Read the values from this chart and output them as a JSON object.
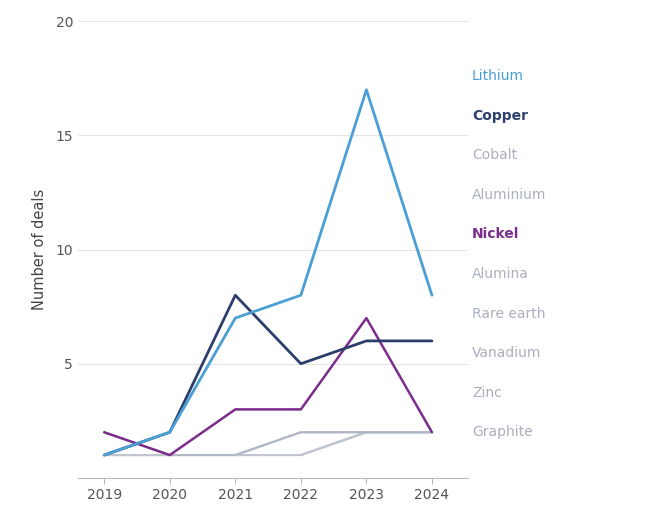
{
  "years": [
    2019,
    2020,
    2021,
    2022,
    2023,
    2024
  ],
  "series": {
    "Lithium": [
      1,
      2,
      7,
      8,
      17,
      8
    ],
    "Copper": [
      1,
      2,
      8,
      5,
      6,
      6
    ],
    "Cobalt": [
      2,
      1,
      1,
      2,
      2,
      2
    ],
    "Aluminium": [
      1,
      1,
      1,
      1,
      2,
      2
    ],
    "Nickel": [
      2,
      1,
      3,
      3,
      7,
      2
    ],
    "Alumina": [
      1,
      1,
      1,
      2,
      2,
      2
    ],
    "Rare earth": [
      1,
      1,
      1,
      2,
      2,
      2
    ],
    "Vanadium": [
      1,
      1,
      1,
      1,
      2,
      2
    ],
    "Zinc": [
      1,
      1,
      1,
      1,
      2,
      2
    ],
    "Graphite": [
      1,
      1,
      1,
      1,
      2,
      2
    ]
  },
  "colors": {
    "Lithium": "#4a9fd4",
    "Copper": "#2c3e6b",
    "Cobalt": "#b0b8c8",
    "Aluminium": "#c0c6d0",
    "Nickel": "#7b2d8b",
    "Alumina": "#c0c4cc",
    "Rare earth": "#c8ccd4",
    "Vanadium": "#c0c4cc",
    "Zinc": "#c8ccd4",
    "Graphite": "#c0c4cc"
  },
  "line_order": [
    "Graphite",
    "Zinc",
    "Vanadium",
    "Rare earth",
    "Alumina",
    "Aluminium",
    "Cobalt",
    "Nickel",
    "Copper",
    "Lithium"
  ],
  "legend_order": [
    "Lithium",
    "Copper",
    "Cobalt",
    "Aluminium",
    "Nickel",
    "Alumina",
    "Rare earth",
    "Vanadium",
    "Zinc",
    "Graphite"
  ],
  "label_colors": {
    "Lithium": "#4a9fd4",
    "Copper": "#2c3e6b",
    "Cobalt": "#aab0bc",
    "Aluminium": "#aab0bc",
    "Nickel": "#7b2d8b",
    "Alumina": "#aab0bc",
    "Rare earth": "#aab0bc",
    "Vanadium": "#aab0bc",
    "Zinc": "#aab0bc",
    "Graphite": "#aab0bc"
  },
  "fontweights": {
    "Lithium": "normal",
    "Copper": "bold",
    "Cobalt": "normal",
    "Aluminium": "normal",
    "Nickel": "bold",
    "Alumina": "normal",
    "Rare earth": "normal",
    "Vanadium": "normal",
    "Zinc": "normal",
    "Graphite": "normal"
  },
  "linewidths": {
    "Lithium": 2.0,
    "Copper": 2.0,
    "Cobalt": 1.4,
    "Aluminium": 1.4,
    "Nickel": 1.8,
    "Alumina": 1.4,
    "Rare earth": 1.4,
    "Vanadium": 1.4,
    "Zinc": 1.4,
    "Graphite": 1.4
  },
  "ylabel": "Number of deals",
  "ylim": [
    0,
    20
  ],
  "yticks": [
    5,
    10,
    15,
    20
  ],
  "background_color": "#ffffff",
  "axis_label_fontsize": 10.5,
  "tick_fontsize": 10,
  "legend_fontsize": 10
}
